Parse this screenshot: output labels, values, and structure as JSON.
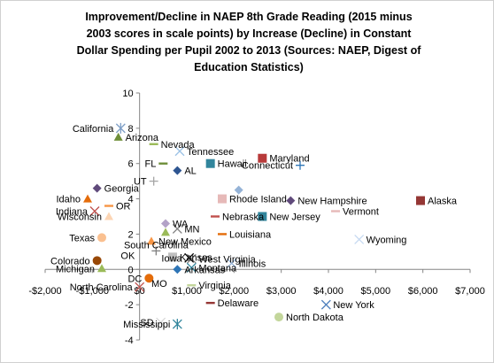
{
  "chart_data": {
    "type": "scatter",
    "title": "Improvement/Decline in NAEP 8th Grade Reading (2015 minus 2003 scores in scale points) by Increase (Decline) in Constant Dollar Spending per Pupil 2002 to 2013 (Sources: NAEP, Digest of Education Statistics)",
    "title_lines": [
      "Improvement/Decline in NAEP 8th Grade Reading (2015 minus",
      "2003 scores in scale points) by Increase (Decline) in Constant",
      "Dollar Spending per Pupil 2002 to 2013 (Sources: NAEP, Digest of",
      "Education Statistics)"
    ],
    "xlabel": "",
    "ylabel": "",
    "xlim": [
      -2000,
      7000
    ],
    "ylim": [
      -4,
      10
    ],
    "x_ticks": [
      -2000,
      -1000,
      0,
      1000,
      2000,
      3000,
      4000,
      5000,
      6000,
      7000
    ],
    "x_tick_labels": [
      "-$2,000",
      "-$1,000",
      "$0",
      "$1,000",
      "$2,000",
      "$3,000",
      "$4,000",
      "$5,000",
      "$6,000",
      "$7,000"
    ],
    "y_ticks": [
      -4,
      -2,
      0,
      2,
      4,
      6,
      8,
      10
    ],
    "y_tick_labels": [
      "-4",
      "-2",
      "0",
      "2",
      "4",
      "6",
      "8",
      "10"
    ],
    "grid": false,
    "legend": "none",
    "points": [
      {
        "label": "California",
        "x": -400,
        "y": 8.0,
        "marker": "star",
        "color": "#7f9fc7",
        "label_side": "left"
      },
      {
        "label": "Arizona",
        "x": -450,
        "y": 7.5,
        "marker": "triangle",
        "color": "#6f8f3a",
        "label_side": "right"
      },
      {
        "label": "Nevada",
        "x": 300,
        "y": 7.1,
        "marker": "dash",
        "color": "#9bbb59",
        "label_side": "right"
      },
      {
        "label": "Tennessee",
        "x": 850,
        "y": 6.7,
        "marker": "x",
        "color": "#9dc3e6",
        "label_side": "right"
      },
      {
        "label": "FL",
        "x": 500,
        "y": 6.0,
        "marker": "dash",
        "color": "#6f8f3a",
        "label_side": "left"
      },
      {
        "label": "AL",
        "x": 800,
        "y": 5.6,
        "marker": "diamond",
        "color": "#2e5591",
        "label_side": "right"
      },
      {
        "label": "Hawaii",
        "x": 1500,
        "y": 6.0,
        "marker": "square",
        "color": "#31859c",
        "label_side": "right"
      },
      {
        "label": "Maryland",
        "x": 2600,
        "y": 6.3,
        "marker": "square",
        "color": "#b83a3a",
        "label_side": "right"
      },
      {
        "label": "Connecticut",
        "x": 3400,
        "y": 5.9,
        "marker": "plus",
        "color": "#2e75b6",
        "label_side": "left"
      },
      {
        "label": "UT",
        "x": 300,
        "y": 5.0,
        "marker": "plus",
        "color": "#a5a5a5",
        "label_side": "left"
      },
      {
        "label": "Georgia",
        "x": -900,
        "y": 4.6,
        "marker": "diamond",
        "color": "#604a7b",
        "label_side": "right"
      },
      {
        "label": "Idaho",
        "x": -1100,
        "y": 4.0,
        "marker": "triangle",
        "color": "#e46c0a",
        "label_side": "left"
      },
      {
        "label": "OR",
        "x": -650,
        "y": 3.6,
        "marker": "dash",
        "color": "#f79646",
        "label_side": "right"
      },
      {
        "label": "Indiana",
        "x": -950,
        "y": 3.3,
        "marker": "x",
        "color": "#c0504d",
        "label_side": "left"
      },
      {
        "label": "Wisconsin",
        "x": -650,
        "y": 3.0,
        "marker": "triangle",
        "color": "#fcd5b4",
        "label_side": "left"
      },
      {
        "label": "Rhode Island",
        "x": 1750,
        "y": 4.0,
        "marker": "square",
        "color": "#e6b9b8",
        "label_side": "right"
      },
      {
        "label": "",
        "x": 2100,
        "y": 4.5,
        "marker": "diamond",
        "color": "#95b3d7",
        "label_side": "none"
      },
      {
        "label": "New Hampshire",
        "x": 3200,
        "y": 3.9,
        "marker": "diamond",
        "color": "#604a7b",
        "label_side": "right"
      },
      {
        "label": "Alaska",
        "x": 5950,
        "y": 3.9,
        "marker": "square",
        "color": "#953735",
        "label_side": "right"
      },
      {
        "label": "Vermont",
        "x": 4150,
        "y": 3.3,
        "marker": "dash",
        "color": "#e6b9b8",
        "label_side": "right"
      },
      {
        "label": "Nebraska",
        "x": 1600,
        "y": 3.0,
        "marker": "dash",
        "color": "#c0504d",
        "label_side": "right"
      },
      {
        "label": "New Jersey",
        "x": 2600,
        "y": 3.0,
        "marker": "square",
        "color": "#31859c",
        "label_side": "right"
      },
      {
        "label": "WA",
        "x": 550,
        "y": 2.6,
        "marker": "diamond",
        "color": "#b3a2c7",
        "label_side": "right"
      },
      {
        "label": "MN",
        "x": 800,
        "y": 2.3,
        "marker": "x",
        "color": "#7f7f7f",
        "label_side": "right"
      },
      {
        "label": "",
        "x": 550,
        "y": 2.1,
        "marker": "triangle",
        "color": "#9bbb59",
        "label_side": "none"
      },
      {
        "label": "Louisiana",
        "x": 1750,
        "y": 2.0,
        "marker": "dash",
        "color": "#e46c0a",
        "label_side": "right"
      },
      {
        "label": "Wyoming",
        "x": 4650,
        "y": 1.7,
        "marker": "x",
        "color": "#c6d9f1",
        "label_side": "right"
      },
      {
        "label": "Texas",
        "x": -800,
        "y": 1.8,
        "marker": "circle",
        "color": "#fac090",
        "label_side": "left"
      },
      {
        "label": "New Mexico",
        "x": 250,
        "y": 1.6,
        "marker": "triangle",
        "color": "#f79646",
        "label_side": "right"
      },
      {
        "label": "South Carolina",
        "x": 350,
        "y": 1.05,
        "marker": "plus",
        "color": "#7f7f7f",
        "label_side": "center"
      },
      {
        "label": "OK",
        "x": 50,
        "y": 0.8,
        "marker": "none",
        "color": "#000000",
        "label_side": "left"
      },
      {
        "label": "Kansas",
        "x": 700,
        "y": 0.7,
        "marker": "square",
        "color": "#bfbfbf",
        "label_side": "right"
      },
      {
        "label": "Iowa",
        "x": 1050,
        "y": 0.65,
        "marker": "x",
        "color": "#000000",
        "label_side": "left"
      },
      {
        "label": "West Virginia",
        "x": 1100,
        "y": 0.6,
        "marker": "x",
        "color": "#7f7f7f",
        "label_side": "right"
      },
      {
        "label": "Illinois",
        "x": 1950,
        "y": 0.35,
        "marker": "x",
        "color": "#95b3d7",
        "label_side": "right"
      },
      {
        "label": "Colorado",
        "x": -900,
        "y": 0.5,
        "marker": "circle",
        "color": "#984807",
        "label_side": "left"
      },
      {
        "label": "Montana",
        "x": 1100,
        "y": 0.1,
        "marker": "x",
        "color": "#31859c",
        "label_side": "right"
      },
      {
        "label": "Arkansas",
        "x": 800,
        "y": 0.0,
        "marker": "diamond",
        "color": "#2e75b6",
        "label_side": "right"
      },
      {
        "label": "Michigan",
        "x": -800,
        "y": 0.05,
        "marker": "triangle",
        "color": "#9bbb59",
        "label_side": "left"
      },
      {
        "label": "DC",
        "x": 200,
        "y": -0.5,
        "marker": "circle",
        "color": "#e46c0a",
        "label_side": "left"
      },
      {
        "label": "MO",
        "x": 100,
        "y": -0.8,
        "marker": "none",
        "color": "#000000",
        "label_side": "right"
      },
      {
        "label": "North Carolina",
        "x": 0,
        "y": -1.0,
        "marker": "x",
        "color": "#c0504d",
        "label_side": "left"
      },
      {
        "label": "Virginia",
        "x": 1100,
        "y": -0.9,
        "marker": "dash",
        "color": "#c3d69b",
        "label_side": "right"
      },
      {
        "label": "Delaware",
        "x": 1500,
        "y": -1.9,
        "marker": "dash",
        "color": "#953735",
        "label_side": "right"
      },
      {
        "label": "New York",
        "x": 3950,
        "y": -2.0,
        "marker": "x",
        "color": "#4f81bd",
        "label_side": "right"
      },
      {
        "label": "North Dakota",
        "x": 2950,
        "y": -2.7,
        "marker": "circle",
        "color": "#c3d69b",
        "label_side": "right"
      },
      {
        "label": "SD",
        "x": 450,
        "y": -3.0,
        "marker": "x",
        "color": "#d9d9d9",
        "label_side": "left"
      },
      {
        "label": "Mississippi",
        "x": 800,
        "y": -3.1,
        "marker": "star",
        "color": "#31859c",
        "label_side": "left"
      }
    ]
  }
}
